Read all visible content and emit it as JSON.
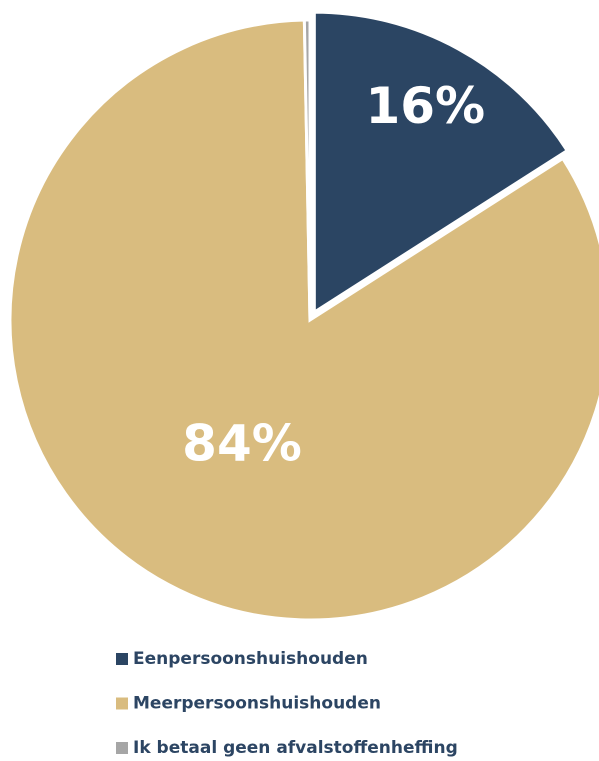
{
  "chart_data": {
    "type": "pie",
    "categories": [
      "Eenpersoonshuishouden",
      "Meerpersoonshuishouden",
      "Ik betaal geen afvalstoffenheffing"
    ],
    "values": [
      16,
      84,
      0.3
    ],
    "value_labels": [
      "16%",
      "84%",
      null
    ],
    "colors": [
      "#2b4563",
      "#d9bc7f",
      "#a6a6a6"
    ],
    "legend": "bottom"
  }
}
